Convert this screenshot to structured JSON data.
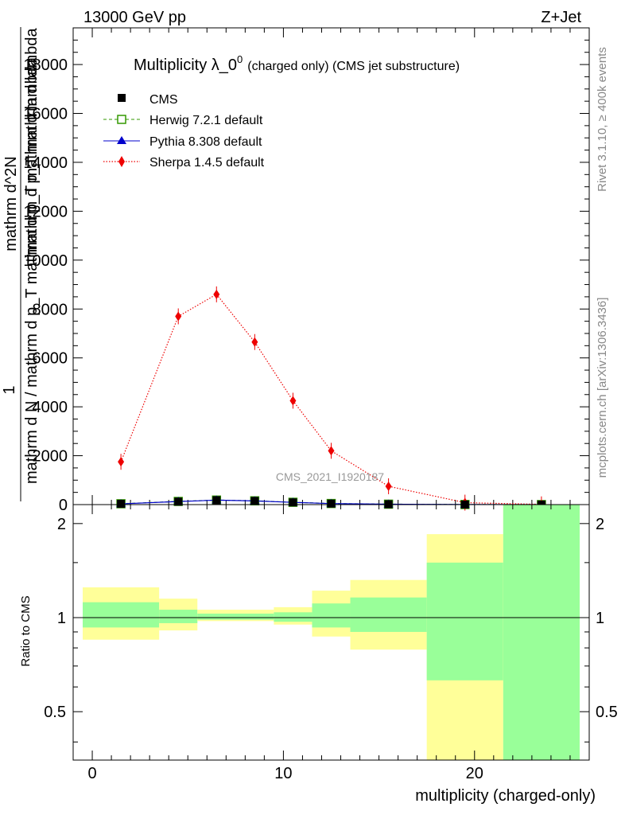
{
  "header": {
    "left": "13000 GeV pp",
    "right": "Z+Jet"
  },
  "side": {
    "rivet": "Rivet 3.1.10, ≥ 400k events",
    "mcplots": "mcplots.cern.ch [arXiv:1306.3436]"
  },
  "chart_data": [
    {
      "type": "line",
      "title_main": "Multiplicity λ_0",
      "title_sup": "0",
      "title_sub": "(charged only) (CMS jet substructure)",
      "ylabel_lines": [
        "1",
        "mathrm d N / mathrm d p_T mathrm d p_T mathrmd N",
        "mathrm d lambda"
      ],
      "ylabel_numer": "mathrm d^2N",
      "ylabel_denom": "mathrm d p_T mathrm d lambda",
      "ylabel_one": "1",
      "ylabel_frac": "mathrm d N / mathrm d p_T mathrm d p_T mathrm d lambda",
      "watermark": "CMS_2021_I1920187",
      "ylim": [
        0,
        19500
      ],
      "yticks": [
        0,
        2000,
        4000,
        6000,
        8000,
        10000,
        12000,
        14000,
        16000,
        18000
      ],
      "ytick_labels": [
        "0",
        "2000",
        "4000",
        "6000",
        "8000",
        "10000",
        "12000",
        "14000",
        "16000",
        "18000"
      ],
      "xlim": [
        -1,
        26
      ],
      "legend_position": "top-left",
      "legend": [
        {
          "label": "CMS",
          "color": "#000000"
        },
        {
          "label": "Herwig 7.2.1 default",
          "color": "#339900"
        },
        {
          "label": "Pythia 8.308 default",
          "color": "#0000cc"
        },
        {
          "label": "Sherpa 1.4.5 default",
          "color": "#ee0000"
        }
      ],
      "x": [
        1.5,
        4.5,
        6.5,
        8.5,
        10.5,
        12.5,
        15.5,
        19.5,
        23.5
      ],
      "series": [
        {
          "name": "CMS",
          "values": [
            30,
            120,
            180,
            150,
            90,
            40,
            15,
            3,
            1
          ]
        },
        {
          "name": "Herwig 7.2.1 default",
          "values": [
            35,
            130,
            185,
            155,
            95,
            45,
            18,
            4,
            1
          ]
        },
        {
          "name": "Pythia 8.308 default",
          "values": [
            30,
            125,
            182,
            150,
            92,
            42,
            16,
            3,
            1
          ]
        },
        {
          "name": "Sherpa 1.4.5 default",
          "values": [
            1750,
            7700,
            8600,
            6650,
            4250,
            2200,
            750,
            80,
            10
          ]
        }
      ]
    },
    {
      "type": "area",
      "ylabel": "Ratio to CMS",
      "xlabel": "multiplicity (charged-only)",
      "ylim": [
        0.35,
        2.3
      ],
      "yscale": "log",
      "yticks": [
        0.5,
        1,
        2
      ],
      "ytick_labels": [
        "0.5",
        "1",
        "2"
      ],
      "xlim": [
        -1,
        26
      ],
      "xticks": [
        0,
        10,
        20
      ],
      "xtick_labels": [
        "0",
        "10",
        "20"
      ],
      "bins": [
        {
          "x0": -0.5,
          "x1": 3.5,
          "inner": [
            0.93,
            1.12
          ],
          "outer": [
            0.85,
            1.25
          ]
        },
        {
          "x0": 3.5,
          "x1": 5.5,
          "inner": [
            0.96,
            1.06
          ],
          "outer": [
            0.91,
            1.15
          ]
        },
        {
          "x0": 5.5,
          "x1": 9.5,
          "inner": [
            0.985,
            1.03
          ],
          "outer": [
            0.975,
            1.06
          ]
        },
        {
          "x0": 9.5,
          "x1": 11.5,
          "inner": [
            0.97,
            1.04
          ],
          "outer": [
            0.95,
            1.08
          ]
        },
        {
          "x0": 11.5,
          "x1": 13.5,
          "inner": [
            0.93,
            1.11
          ],
          "outer": [
            0.87,
            1.22
          ]
        },
        {
          "x0": 13.5,
          "x1": 17.5,
          "inner": [
            0.9,
            1.16
          ],
          "outer": [
            0.79,
            1.32
          ]
        },
        {
          "x0": 17.5,
          "x1": 21.5,
          "inner": [
            0.63,
            1.5
          ],
          "outer": [
            0.35,
            1.85
          ]
        },
        {
          "x0": 21.5,
          "x1": 25.5,
          "inner": [
            0.35,
            2.3
          ],
          "outer": [
            0.35,
            2.3
          ]
        }
      ],
      "reference": 1
    }
  ]
}
